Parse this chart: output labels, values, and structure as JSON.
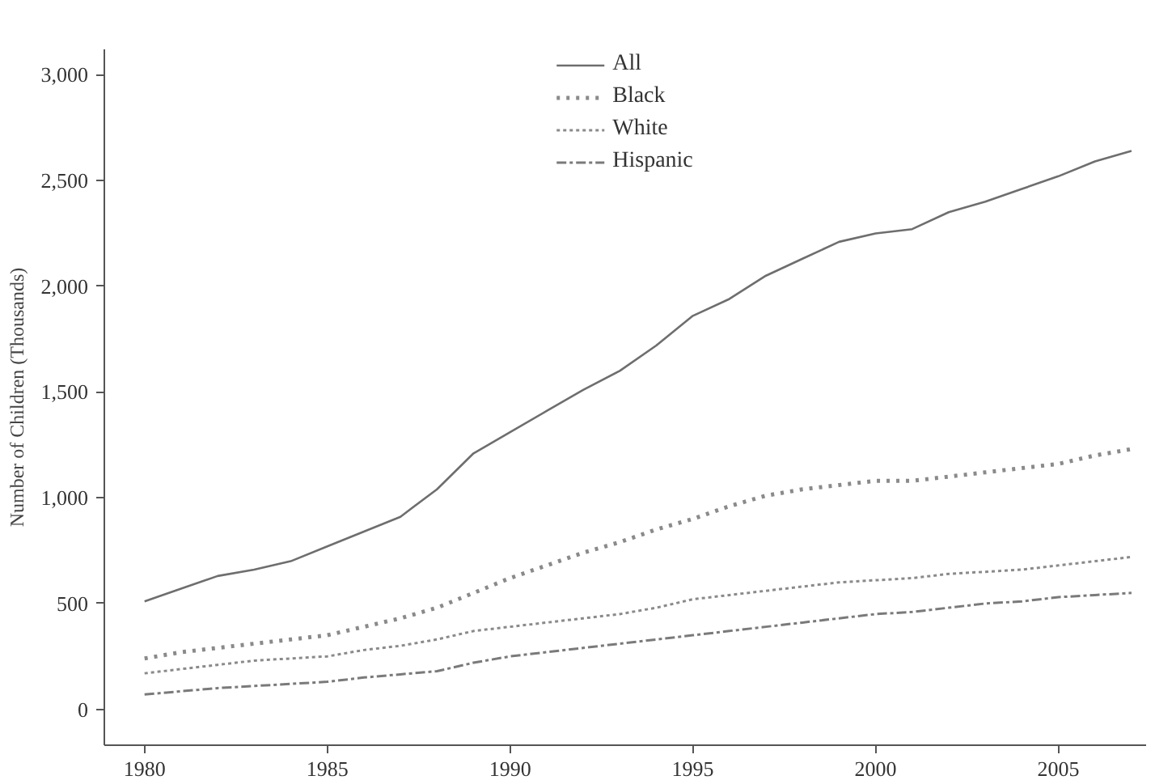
{
  "chart_data": {
    "type": "line",
    "ylabel": "Number of Children (Thousands)",
    "x": [
      1980,
      1981,
      1982,
      1983,
      1984,
      1985,
      1986,
      1987,
      1988,
      1989,
      1990,
      1991,
      1992,
      1993,
      1994,
      1995,
      1996,
      1997,
      1998,
      1999,
      2000,
      2001,
      2002,
      2003,
      2004,
      2005,
      2006,
      2007
    ],
    "series": [
      {
        "name": "All",
        "color": "#6e6e6e",
        "line_style": "solid",
        "values": [
          510,
          570,
          630,
          660,
          700,
          770,
          840,
          910,
          1040,
          1210,
          1310,
          1410,
          1510,
          1600,
          1720,
          1860,
          1940,
          2050,
          2130,
          2210,
          2250,
          2270,
          2350,
          2400,
          2460,
          2520,
          2590,
          2640
        ]
      },
      {
        "name": "Black",
        "color": "#8a8a8a",
        "line_style": "dotted",
        "values": [
          240,
          270,
          290,
          310,
          330,
          350,
          390,
          430,
          480,
          550,
          620,
          680,
          740,
          790,
          850,
          900,
          960,
          1010,
          1040,
          1060,
          1080,
          1080,
          1100,
          1120,
          1140,
          1160,
          1200,
          1230
        ]
      },
      {
        "name": "White",
        "color": "#8a8a8a",
        "line_style": "dashed",
        "values": [
          170,
          190,
          210,
          230,
          240,
          250,
          280,
          300,
          330,
          370,
          390,
          410,
          430,
          450,
          480,
          520,
          540,
          560,
          580,
          600,
          610,
          620,
          640,
          650,
          660,
          680,
          700,
          720
        ]
      },
      {
        "name": "Hispanic",
        "color": "#7a7a7a",
        "line_style": "dashdot",
        "values": [
          70,
          85,
          100,
          110,
          120,
          130,
          150,
          165,
          180,
          220,
          250,
          270,
          290,
          310,
          330,
          350,
          370,
          390,
          410,
          430,
          450,
          460,
          480,
          500,
          510,
          530,
          540,
          550
        ]
      }
    ],
    "xlim": [
      1978.9,
      2007.4
    ],
    "ylim": [
      -170,
      3120
    ],
    "xticks": [
      1980,
      1985,
      1990,
      1995,
      2000,
      2005
    ],
    "yticks": [
      {
        "value": 0,
        "label": "0"
      },
      {
        "value": 500,
        "label": "500"
      },
      {
        "value": 1000,
        "label": "1,000"
      },
      {
        "value": 1500,
        "label": "1,500"
      },
      {
        "value": 2000,
        "label": "2,000"
      },
      {
        "value": 2500,
        "label": "2,500"
      },
      {
        "value": 3000,
        "label": "3,000"
      }
    ],
    "grid": false,
    "legend": "top"
  }
}
